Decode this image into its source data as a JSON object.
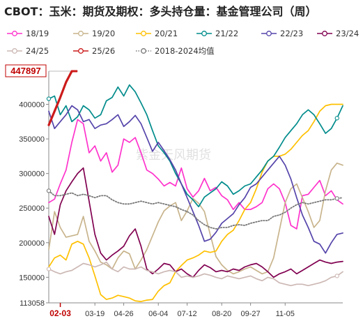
{
  "chart_data": {
    "type": "line",
    "title": "CBOT：玉米：期货及期权：多头持仓量：基金管理公司（周）",
    "watermark": "紫金天风期货",
    "x_ticks": [
      "02-03",
      "03-19",
      "04-26",
      "06-04",
      "07-12",
      "08-20",
      "09-27",
      "11-05"
    ],
    "x_highlight": "02-03",
    "ylim": [
      113058,
      447897
    ],
    "y_ticks": [
      113058,
      150000,
      200000,
      250000,
      300000,
      350000,
      400000,
      447897
    ],
    "y_max_label": "447897",
    "y_min_label": "113058",
    "grid": "none",
    "legend_position": "top",
    "weeks": 52,
    "series": [
      {
        "name": "18/19",
        "color": "#ff33cc",
        "style": "solid",
        "marker": "none",
        "values": [
          258000,
          263000,
          285000,
          305000,
          345000,
          378000,
          372000,
          330000,
          340000,
          318000,
          330000,
          302000,
          312000,
          350000,
          345000,
          352000,
          330000,
          305000,
          300000,
          292000,
          282000,
          287000,
          282000,
          308000,
          278000,
          266000,
          275000,
          293000,
          275000,
          280000,
          268000,
          262000,
          248000,
          258000,
          248000,
          248000,
          252000,
          258000,
          278000,
          285000,
          278000,
          258000,
          225000,
          220000,
          268000,
          270000,
          280000,
          290000,
          268000,
          275000,
          262000,
          256000
        ]
      },
      {
        "name": "19/20",
        "color": "#c8b48c",
        "style": "solid",
        "marker": "none",
        "values": [
          190000,
          245000,
          222000,
          208000,
          210000,
          212000,
          238000,
          202000,
          188000,
          172000,
          168000,
          162000,
          178000,
          188000,
          184000,
          162000,
          175000,
          190000,
          210000,
          230000,
          246000,
          253000,
          258000,
          232000,
          246000,
          264000,
          257000,
          245000,
          212000,
          180000,
          168000,
          160000,
          155000,
          158000,
          162000,
          165000,
          160000,
          155000,
          158000,
          178000,
          218000,
          258000,
          278000,
          285000,
          265000,
          245000,
          222000,
          232000,
          275000,
          305000,
          315000,
          312000
        ]
      },
      {
        "name": "20/21",
        "color": "#ffc000",
        "style": "solid",
        "marker": "none",
        "values": [
          165000,
          178000,
          182000,
          175000,
          198000,
          202000,
          198000,
          178000,
          152000,
          125000,
          118000,
          120000,
          124000,
          122000,
          120000,
          116000,
          115000,
          117000,
          118000,
          130000,
          138000,
          142000,
          158000,
          167000,
          175000,
          178000,
          182000,
          188000,
          186000,
          188000,
          202000,
          212000,
          218000,
          232000,
          248000,
          258000,
          278000,
          302000,
          318000,
          325000,
          325000,
          328000,
          335000,
          345000,
          355000,
          362000,
          375000,
          390000,
          398000,
          400000,
          400000,
          400000
        ]
      },
      {
        "name": "21/22",
        "color": "#008b8b",
        "style": "solid",
        "marker": "ring",
        "values": [
          408000,
          412000,
          385000,
          398000,
          375000,
          382000,
          398000,
          392000,
          380000,
          385000,
          405000,
          410000,
          425000,
          412000,
          428000,
          418000,
          402000,
          385000,
          362000,
          340000,
          330000,
          318000,
          300000,
          285000,
          270000,
          262000,
          252000,
          266000,
          272000,
          278000,
          288000,
          282000,
          270000,
          275000,
          282000,
          285000,
          295000,
          305000,
          318000,
          325000,
          338000,
          352000,
          362000,
          372000,
          385000,
          392000,
          385000,
          372000,
          358000,
          365000,
          380000,
          398000
        ]
      },
      {
        "name": "22/23",
        "color": "#5544aa",
        "style": "solid",
        "marker": "none",
        "values": [
          390000,
          365000,
          375000,
          385000,
          398000,
          392000,
          375000,
          378000,
          365000,
          370000,
          372000,
          378000,
          385000,
          368000,
          375000,
          384000,
          372000,
          352000,
          332000,
          345000,
          333000,
          320000,
          305000,
          285000,
          265000,
          245000,
          225000,
          202000,
          205000,
          215000,
          228000,
          235000,
          242000,
          255000,
          265000,
          280000,
          285000,
          295000,
          305000,
          315000,
          325000,
          312000,
          292000,
          265000,
          240000,
          222000,
          202000,
          198000,
          185000,
          200000,
          212000,
          214000
        ]
      },
      {
        "name": "23/24",
        "color": "#800050",
        "style": "solid",
        "marker": "none",
        "values": [
          238000,
          212000,
          255000,
          275000,
          288000,
          300000,
          308000,
          260000,
          212000,
          185000,
          175000,
          182000,
          188000,
          195000,
          210000,
          220000,
          195000,
          162000,
          155000,
          162000,
          170000,
          168000,
          158000,
          162000,
          155000,
          150000,
          160000,
          168000,
          164000,
          158000,
          160000,
          158000,
          162000,
          160000,
          165000,
          168000,
          170000,
          165000,
          158000,
          150000,
          155000,
          158000,
          162000,
          155000,
          160000,
          165000,
          170000,
          175000,
          172000,
          170000,
          172000,
          173000
        ]
      },
      {
        "name": "24/25",
        "color": "#ccb8b4",
        "style": "solid",
        "marker": "ring",
        "values": [
          162000,
          158000,
          155000,
          158000,
          160000,
          165000,
          170000,
          168000,
          165000,
          168000,
          172000,
          162000,
          158000,
          165000,
          162000,
          162000,
          165000,
          160000,
          158000,
          155000,
          158000,
          160000,
          158000,
          150000,
          152000,
          150000,
          152000,
          155000,
          153000,
          150000,
          148000,
          152000,
          150000,
          148000,
          150000,
          152000,
          148000,
          145000,
          150000,
          148000,
          142000,
          140000,
          138000,
          140000,
          140000,
          138000,
          140000,
          142000,
          145000,
          150000,
          152000,
          158000
        ]
      },
      {
        "name": "25/26",
        "color": "#cc1a1a",
        "style": "solid",
        "marker": "ring",
        "values": [
          370000,
          390000,
          410000,
          432000,
          447897
        ]
      },
      {
        "name": "2018-2024均值",
        "color": "#777777",
        "style": "dotted",
        "marker": "ring",
        "values": [
          275000,
          268000,
          268000,
          270000,
          272000,
          268000,
          270000,
          268000,
          265000,
          268000,
          268000,
          262000,
          258000,
          256000,
          256000,
          258000,
          260000,
          258000,
          256000,
          258000,
          256000,
          254000,
          252000,
          248000,
          245000,
          240000,
          232000,
          226000,
          222000,
          220000,
          222000,
          222000,
          225000,
          226000,
          225000,
          228000,
          230000,
          232000,
          232000,
          238000,
          240000,
          244000,
          250000,
          255000,
          258000,
          256000,
          258000,
          260000,
          262000,
          262000,
          264000,
          265000
        ]
      }
    ]
  }
}
